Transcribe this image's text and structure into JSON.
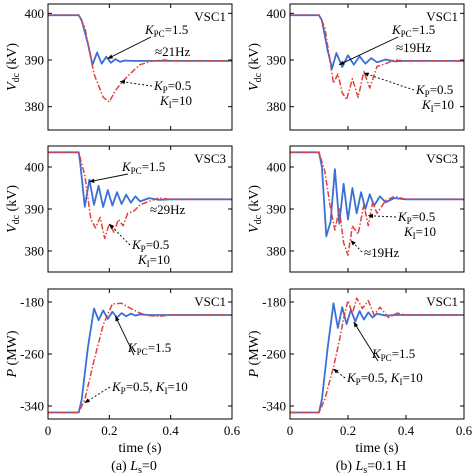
{
  "chart_data": [
    {
      "id": "a1",
      "type": "line",
      "title": "VSC1",
      "ylabel": "Vdc (kV)",
      "ylabel_main": "V",
      "ylabel_sub": "dc",
      "ylabel_unit": " (kV)",
      "xlim": [
        0,
        0.6
      ],
      "ylim": [
        375,
        402
      ],
      "yticks": [
        "400",
        "390",
        "380"
      ],
      "ytick_values": [
        400,
        390,
        380
      ],
      "series": [
        {
          "name": "KPC=1.5",
          "color": "#3a6fd8",
          "style": "solid",
          "x": [
            0,
            0.1,
            0.11,
            0.13,
            0.145,
            0.16,
            0.175,
            0.19,
            0.205,
            0.22,
            0.235,
            0.25,
            0.27,
            0.3,
            0.6
          ],
          "y": [
            399.6,
            399.6,
            398.5,
            393.5,
            389.0,
            391.6,
            389.2,
            390.7,
            389.4,
            390.2,
            389.6,
            389.9,
            389.8,
            389.8,
            389.8
          ]
        },
        {
          "name": "KP=0.5, KI=10",
          "color": "#e0413a",
          "style": "dashdot",
          "x": [
            0,
            0.1,
            0.12,
            0.15,
            0.18,
            0.2,
            0.22,
            0.245,
            0.27,
            0.3,
            0.34,
            0.38,
            0.42,
            0.6
          ],
          "y": [
            399.6,
            399.6,
            397.0,
            387.0,
            382.0,
            381.0,
            383.5,
            385.5,
            387.2,
            389.0,
            389.8,
            390.0,
            389.8,
            389.8
          ]
        }
      ],
      "annotations": [
        {
          "kind": "KPC",
          "main": "K",
          "sub": "PC",
          "value": "=1.5"
        },
        {
          "kind": "text",
          "text": "≈21Hz"
        },
        {
          "kind": "two",
          "l1_main": "K",
          "l1_sub": "P",
          "l1_val": "=0.5",
          "l2_main": "K",
          "l2_sub": "I",
          "l2_val": "=10"
        }
      ]
    },
    {
      "id": "b1",
      "type": "line",
      "title": "VSC1",
      "ylabel": "Vdc (kV)",
      "ylabel_main": "V",
      "ylabel_sub": "dc",
      "ylabel_unit": " (kV)",
      "xlim": [
        0,
        0.6
      ],
      "ylim": [
        375,
        402
      ],
      "yticks": [
        "400",
        "390",
        "380"
      ],
      "ytick_values": [
        400,
        390,
        380
      ],
      "series": [
        {
          "name": "KPC=1.5",
          "color": "#3a6fd8",
          "style": "solid",
          "x": [
            0,
            0.1,
            0.11,
            0.13,
            0.145,
            0.16,
            0.18,
            0.2,
            0.22,
            0.24,
            0.26,
            0.28,
            0.3,
            0.33,
            0.36,
            0.4,
            0.6
          ],
          "y": [
            399.6,
            399.6,
            398.5,
            392.0,
            388.2,
            391.5,
            388.5,
            391.0,
            389.0,
            390.8,
            389.2,
            390.4,
            389.5,
            390.1,
            389.7,
            389.8,
            389.8
          ]
        },
        {
          "name": "KP=0.5, KI=10",
          "color": "#e0413a",
          "style": "dashdot",
          "x": [
            0,
            0.1,
            0.12,
            0.15,
            0.165,
            0.18,
            0.195,
            0.215,
            0.235,
            0.255,
            0.275,
            0.3,
            0.33,
            0.36,
            0.4,
            0.6
          ],
          "y": [
            399.6,
            399.6,
            397.0,
            385.0,
            387.0,
            383.0,
            381.5,
            386.0,
            382.0,
            387.5,
            384.0,
            388.6,
            389.2,
            390.0,
            389.8,
            389.8
          ]
        }
      ],
      "annotations": [
        {
          "kind": "KPC",
          "main": "K",
          "sub": "PC",
          "value": "=1.5"
        },
        {
          "kind": "text",
          "text": "≈19Hz"
        },
        {
          "kind": "two",
          "l1_main": "K",
          "l1_sub": "P",
          "l1_val": "=0.5",
          "l2_main": "K",
          "l2_sub": "I",
          "l2_val": "=10"
        }
      ]
    },
    {
      "id": "a2",
      "type": "line",
      "title": "VSC3",
      "ylabel": "Vdc (kV)",
      "ylabel_main": "V",
      "ylabel_sub": "dc",
      "ylabel_unit": " (kV)",
      "xlim": [
        0,
        0.6
      ],
      "ylim": [
        375,
        405
      ],
      "yticks": [
        "400",
        "390",
        "380"
      ],
      "ytick_values": [
        400,
        390,
        380
      ],
      "series": [
        {
          "name": "KPC=1.5",
          "color": "#3a6fd8",
          "style": "solid",
          "x": [
            0,
            0.1,
            0.105,
            0.12,
            0.135,
            0.15,
            0.165,
            0.18,
            0.195,
            0.21,
            0.225,
            0.24,
            0.255,
            0.27,
            0.285,
            0.3,
            0.33,
            0.36,
            0.4,
            0.6
          ],
          "y": [
            403.5,
            403.5,
            401.0,
            390.5,
            397.0,
            391.0,
            395.5,
            390.5,
            394.5,
            390.8,
            394.0,
            391.2,
            393.4,
            391.5,
            393.0,
            391.8,
            392.6,
            392.2,
            392.3,
            392.3
          ]
        },
        {
          "name": "KP=0.5, KI=10",
          "color": "#e0413a",
          "style": "dashdot",
          "x": [
            0,
            0.1,
            0.12,
            0.14,
            0.155,
            0.17,
            0.185,
            0.2,
            0.215,
            0.23,
            0.245,
            0.26,
            0.28,
            0.3,
            0.33,
            0.36,
            0.4,
            0.6
          ],
          "y": [
            403.5,
            403.5,
            398.0,
            387.5,
            385.5,
            388.0,
            383.0,
            386.5,
            384.5,
            387.5,
            386.0,
            389.0,
            389.5,
            391.0,
            391.8,
            392.6,
            392.3,
            392.3
          ]
        }
      ],
      "annotations": [
        {
          "kind": "KPC",
          "main": "K",
          "sub": "PC",
          "value": "=1.5"
        },
        {
          "kind": "text",
          "text": "≈29Hz"
        },
        {
          "kind": "two",
          "l1_main": "K",
          "l1_sub": "P",
          "l1_val": "=0.5",
          "l2_main": "K",
          "l2_sub": "I",
          "l2_val": "=10"
        }
      ]
    },
    {
      "id": "b2",
      "type": "line",
      "title": "VSC3",
      "ylabel": "Vdc (kV)",
      "ylabel_main": "V",
      "ylabel_sub": "dc",
      "ylabel_unit": " (kV)",
      "xlim": [
        0,
        0.6
      ],
      "ylim": [
        375,
        405
      ],
      "yticks": [
        "400",
        "390",
        "380"
      ],
      "ytick_values": [
        400,
        390,
        380
      ],
      "series": [
        {
          "name": "KPC=1.5",
          "color": "#3a6fd8",
          "style": "solid",
          "x": [
            0,
            0.1,
            0.11,
            0.125,
            0.14,
            0.155,
            0.17,
            0.185,
            0.2,
            0.215,
            0.23,
            0.245,
            0.26,
            0.275,
            0.29,
            0.31,
            0.33,
            0.36,
            0.4,
            0.6
          ],
          "y": [
            403.5,
            403.5,
            400.0,
            383.5,
            387.0,
            399.5,
            386.5,
            396.0,
            387.5,
            395.0,
            389.0,
            394.0,
            390.0,
            393.5,
            390.8,
            393.0,
            391.6,
            392.6,
            392.3,
            392.3
          ]
        },
        {
          "name": "KP=0.5, KI=10",
          "color": "#e0413a",
          "style": "dashdot",
          "x": [
            0,
            0.1,
            0.12,
            0.14,
            0.155,
            0.17,
            0.185,
            0.2,
            0.215,
            0.235,
            0.255,
            0.27,
            0.285,
            0.3,
            0.33,
            0.36,
            0.4,
            0.6
          ],
          "y": [
            403.5,
            403.5,
            399.0,
            390.0,
            385.0,
            390.0,
            382.0,
            379.0,
            386.0,
            384.0,
            391.0,
            386.0,
            391.5,
            389.0,
            392.0,
            393.0,
            392.3,
            392.3
          ]
        }
      ],
      "annotations": [
        {
          "kind": "two",
          "l1_main": "K",
          "l1_sub": "P",
          "l1_val": "=0.5",
          "l2_main": "K",
          "l2_sub": "I",
          "l2_val": "=10"
        },
        {
          "kind": "text",
          "text": "≈19Hz"
        }
      ]
    },
    {
      "id": "a3",
      "type": "line",
      "title": "VSC1",
      "ylabel": "P (MW)",
      "ylabel_main": "P",
      "ylabel_sub": "",
      "ylabel_unit": " (MW)",
      "xlim": [
        0,
        0.6
      ],
      "ylim": [
        -360,
        -160
      ],
      "yticks": [
        "-180",
        "-260",
        "-340"
      ],
      "ytick_values": [
        -180,
        -260,
        -340
      ],
      "xticks": [
        "0",
        "0.2",
        "0.4",
        "0.6"
      ],
      "xtick_values": [
        0,
        0.2,
        0.4,
        0.6
      ],
      "xlabel": "time (s)",
      "caption": {
        "prefix": "(a) ",
        "var_main": "L",
        "var_sub": "s",
        "value": "=0"
      },
      "series": [
        {
          "name": "KPC=1.5",
          "color": "#3a6fd8",
          "style": "solid",
          "x": [
            0,
            0.1,
            0.11,
            0.13,
            0.15,
            0.165,
            0.18,
            0.195,
            0.21,
            0.225,
            0.24,
            0.255,
            0.27,
            0.285,
            0.3,
            0.33,
            0.6
          ],
          "y": [
            -350,
            -350,
            -330,
            -250,
            -190,
            -208,
            -193,
            -206,
            -195,
            -204,
            -197,
            -202,
            -198,
            -201,
            -199,
            -200,
            -200
          ]
        },
        {
          "name": "KP=0.5, KI=10",
          "color": "#e0413a",
          "style": "dashdot",
          "x": [
            0,
            0.1,
            0.12,
            0.15,
            0.18,
            0.21,
            0.24,
            0.27,
            0.3,
            0.33,
            0.36,
            0.4,
            0.6
          ],
          "y": [
            -350,
            -350,
            -330,
            -270,
            -215,
            -183,
            -182,
            -190,
            -197,
            -201,
            -202,
            -200,
            -200
          ]
        }
      ],
      "annotations": [
        {
          "kind": "KPC",
          "main": "K",
          "sub": "PC",
          "value": "=1.5"
        },
        {
          "kind": "one",
          "a_main": "K",
          "a_sub": "P",
          "a_val": "=0.5, ",
          "b_main": "K",
          "b_sub": "I",
          "b_val": "=10"
        }
      ]
    },
    {
      "id": "b3",
      "type": "line",
      "title": "VSC1",
      "ylabel": "P (MW)",
      "ylabel_main": "P",
      "ylabel_sub": "",
      "ylabel_unit": " (MW)",
      "xlim": [
        0,
        0.6
      ],
      "ylim": [
        -360,
        -160
      ],
      "yticks": [
        "-180",
        "-260",
        "-340"
      ],
      "ytick_values": [
        -180,
        -260,
        -340
      ],
      "xticks": [
        "0",
        "0.2",
        "0.4",
        "0.6"
      ],
      "xtick_values": [
        0,
        0.2,
        0.4,
        0.6
      ],
      "xlabel": "time (s)",
      "caption": {
        "prefix": "(b) ",
        "var_main": "L",
        "var_sub": "s",
        "value": "=0.1 H"
      },
      "series": [
        {
          "name": "KPC=1.5",
          "color": "#3a6fd8",
          "style": "solid",
          "x": [
            0,
            0.1,
            0.11,
            0.13,
            0.15,
            0.165,
            0.18,
            0.195,
            0.21,
            0.225,
            0.24,
            0.255,
            0.27,
            0.285,
            0.3,
            0.33,
            0.36,
            0.6
          ],
          "y": [
            -350,
            -350,
            -330,
            -250,
            -182,
            -220,
            -188,
            -214,
            -192,
            -210,
            -194,
            -207,
            -196,
            -204,
            -198,
            -201,
            -200,
            -200
          ]
        },
        {
          "name": "KP=0.5, KI=10",
          "color": "#e0413a",
          "style": "dashdot",
          "x": [
            0,
            0.1,
            0.12,
            0.15,
            0.17,
            0.185,
            0.2,
            0.215,
            0.23,
            0.25,
            0.27,
            0.29,
            0.31,
            0.34,
            0.37,
            0.4,
            0.6
          ],
          "y": [
            -350,
            -350,
            -330,
            -280,
            -240,
            -205,
            -178,
            -198,
            -174,
            -190,
            -178,
            -200,
            -188,
            -204,
            -197,
            -200,
            -200
          ]
        }
      ],
      "annotations": [
        {
          "kind": "KPC",
          "main": "K",
          "sub": "PC",
          "value": "=1.5"
        },
        {
          "kind": "one",
          "a_main": "K",
          "a_sub": "P",
          "a_val": "=0.5, ",
          "b_main": "K",
          "b_sub": "I",
          "b_val": "=10"
        }
      ]
    }
  ]
}
